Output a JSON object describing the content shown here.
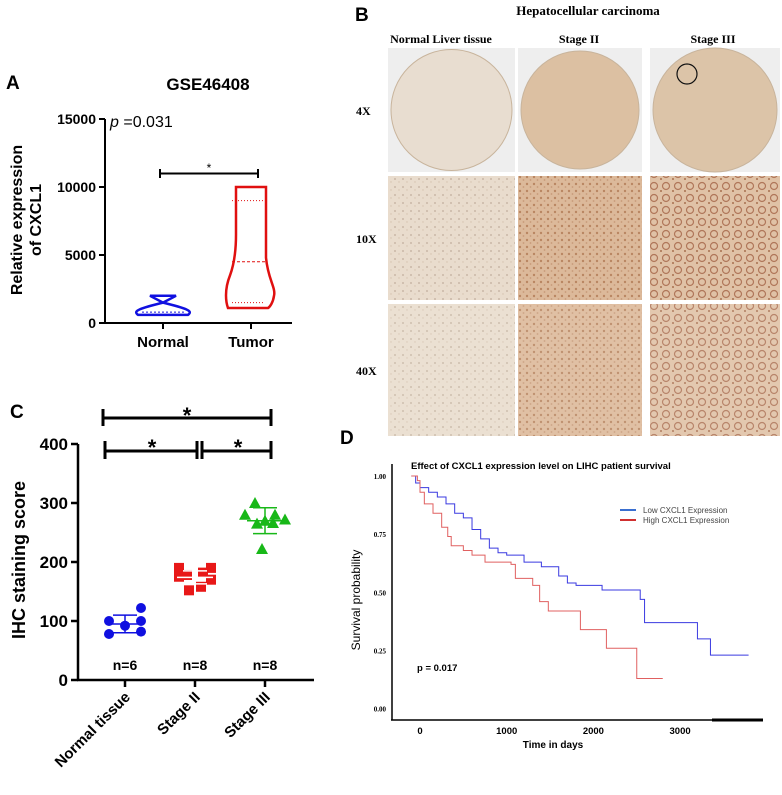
{
  "panels": {
    "A": "A",
    "B": "B",
    "C": "C",
    "D": "D"
  },
  "colors": {
    "normal": "#1010e0",
    "tumor": "#e01010",
    "stage2": "#e81818",
    "stage3": "#18b818",
    "low": "#3a3ae0",
    "high": "#e06060",
    "tissue_light": "#e6d8c8",
    "tissue_dark": "#c89a78"
  },
  "panel_b": {
    "header": "Hepatocellular carcinoma",
    "columns": [
      "Normal  Liver tissue",
      "Stage II",
      "Stage III"
    ],
    "rows": [
      "4X",
      "10X",
      "40X"
    ]
  },
  "chart_data": [
    {
      "type": "violin",
      "title": "GSE46408",
      "annotation": "p =0.031",
      "annotation_p": "p",
      "annotation_value": " =0.031",
      "significance": "*",
      "ylabel_line1": "Relative expression",
      "ylabel_line2": "of CXCL1",
      "ylim": [
        0,
        15000
      ],
      "yticks": [
        "0",
        "5000",
        "10000",
        "15000"
      ],
      "categories": [
        "Normal",
        "Tumor"
      ],
      "series": [
        {
          "category": "Normal",
          "min": 600,
          "max": 2000,
          "q1": 700,
          "median": 800,
          "q3": 900
        },
        {
          "category": "Tumor",
          "min": 1100,
          "max": 10000,
          "q1": 1500,
          "median": 4500,
          "q3": 9000
        }
      ]
    },
    {
      "type": "scatter",
      "ylabel": "IHC staining score",
      "ylim": [
        0,
        400
      ],
      "yticks": [
        "0",
        "100",
        "200",
        "300",
        "400"
      ],
      "categories": [
        "Normal tissue",
        "Stage II",
        "Stage III"
      ],
      "counts": [
        "n=6",
        "n=8",
        "n=8"
      ],
      "significance": [
        "*",
        "*",
        "*"
      ],
      "series": [
        {
          "category": "Normal tissue",
          "values": [
            100,
            78,
            92,
            100,
            122,
            82
          ],
          "mean": 95,
          "sd": 15
        },
        {
          "category": "Stage II",
          "values": [
            190,
            190,
            178,
            182,
            175,
            170,
            152,
            158
          ],
          "mean": 174,
          "sd": 11
        },
        {
          "category": "Stage III",
          "values": [
            300,
            280,
            280,
            270,
            272,
            265,
            266,
            222
          ],
          "mean": 270,
          "sd": 22
        }
      ]
    },
    {
      "type": "line",
      "title": "Effect of CXCL1 expression level on LIHC patient survival",
      "xlabel": "Time in days",
      "ylabel": "Survival probability",
      "xlim": [
        -100,
        3900
      ],
      "ylim": [
        0,
        1
      ],
      "xticks": [
        "0",
        "1000",
        "2000",
        "3000"
      ],
      "yticks": [
        "0.00",
        "0.25",
        "0.50",
        "0.75",
        "1.00"
      ],
      "annotation": "p = 0.017",
      "legend_position": "top-right",
      "series": [
        {
          "name": "Low CXCL1 Expression",
          "step": [
            [
              -100,
              1.0
            ],
            [
              -50,
              0.97
            ],
            [
              0,
              0.95
            ],
            [
              100,
              0.93
            ],
            [
              200,
              0.91
            ],
            [
              300,
              0.88
            ],
            [
              400,
              0.84
            ],
            [
              500,
              0.82
            ],
            [
              600,
              0.77
            ],
            [
              700,
              0.73
            ],
            [
              800,
              0.69
            ],
            [
              900,
              0.67
            ],
            [
              1000,
              0.66
            ],
            [
              1200,
              0.63
            ],
            [
              1400,
              0.61
            ],
            [
              1600,
              0.57
            ],
            [
              1700,
              0.54
            ],
            [
              1800,
              0.53
            ],
            [
              2100,
              0.51
            ],
            [
              2540,
              0.47
            ],
            [
              2590,
              0.37
            ],
            [
              3200,
              0.3
            ],
            [
              3350,
              0.23
            ],
            [
              3790,
              0.23
            ]
          ]
        },
        {
          "name": "High CXCL1 Expression",
          "step": [
            [
              -100,
              1.0
            ],
            [
              -30,
              0.98
            ],
            [
              0,
              0.93
            ],
            [
              50,
              0.88
            ],
            [
              150,
              0.84
            ],
            [
              250,
              0.78
            ],
            [
              320,
              0.74
            ],
            [
              360,
              0.7
            ],
            [
              500,
              0.68
            ],
            [
              600,
              0.66
            ],
            [
              750,
              0.63
            ],
            [
              1050,
              0.62
            ],
            [
              1100,
              0.56
            ],
            [
              1300,
              0.53
            ],
            [
              1380,
              0.46
            ],
            [
              1480,
              0.42
            ],
            [
              1850,
              0.34
            ],
            [
              2150,
              0.26
            ],
            [
              2500,
              0.13
            ],
            [
              2800,
              0.13
            ]
          ]
        }
      ]
    }
  ]
}
